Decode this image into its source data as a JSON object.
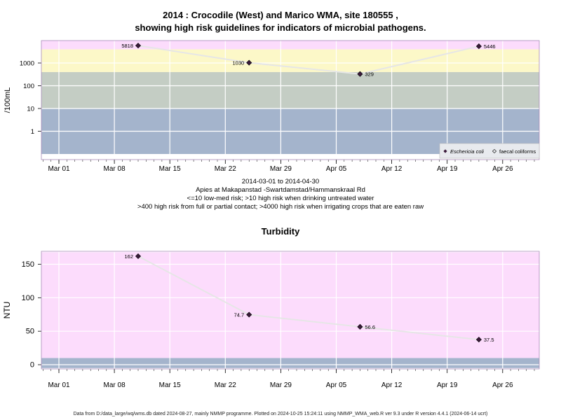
{
  "header": {
    "title_line1": "2014 : Crocodile (West) and Marico WMA, site 180555 ,",
    "title_line2": "showing high risk guidelines for indicators of microbial pathogens."
  },
  "middle": {
    "date_range": "2014-03-01 to 2014-04-30",
    "site_name": "Apies at Makapanstad -Swartdamstad/Hammanskraal Rd",
    "note1": "<=10 low-med risk; >10 high risk when drinking untreated water",
    "note2": ">400 high risk from full or partial contact; >4000 high risk when irrigating crops that are eaten raw"
  },
  "footer": {
    "text": "Data from D:/data_large/wq/wms.db dated 2024-08-27, mainly NMMP programme. Plotted on 2024-10-25 15:24:11 using NMMP_WMA_web.R ver 9.3 under R version 4.4.1 (2024-06-14 ucrt)"
  },
  "chart_data": [
    {
      "type": "scatter",
      "title": "",
      "ylabel": "/100mL",
      "scale": "log",
      "y_ticks": [
        "1",
        "10",
        "100",
        "1000"
      ],
      "x_ticks": [
        "Mar 01",
        "Mar 08",
        "Mar 15",
        "Mar 22",
        "Mar 29",
        "Apr 05",
        "Apr 12",
        "Apr 19",
        "Apr 26"
      ],
      "xlim": [
        "2014-02-27",
        "2014-05-03"
      ],
      "bands": [
        {
          "from": 0.1,
          "to": 10,
          "color": "#a4b4cc"
        },
        {
          "from": 10,
          "to": 400,
          "color": "#c4cdc4"
        },
        {
          "from": 400,
          "to": 4000,
          "color": "#fcf8c8"
        },
        {
          "from": 4000,
          "to": 10000,
          "color": "#fcdcfc"
        }
      ],
      "series": [
        {
          "name": "Eschericia coli",
          "marker": "filled-diamond",
          "points": [
            {
              "x": "2014-03-11",
              "y": 5818,
              "label": "5818"
            },
            {
              "x": "2014-03-25",
              "y": 1030,
              "label": "1030"
            },
            {
              "x": "2014-04-08",
              "y": 329,
              "label": "329"
            },
            {
              "x": "2014-04-23",
              "y": 5446,
              "label": "5446"
            }
          ]
        },
        {
          "name": "faecal coliforms",
          "marker": "open-diamond",
          "points": []
        }
      ],
      "legend": "bottom-right",
      "grid": true
    },
    {
      "type": "scatter",
      "title": "Turbidity",
      "ylabel": "NTU",
      "scale": "linear",
      "ylim": [
        -5,
        168
      ],
      "y_ticks": [
        "0",
        "50",
        "100",
        "150"
      ],
      "x_ticks": [
        "Mar 01",
        "Mar 08",
        "Mar 15",
        "Mar 22",
        "Mar 29",
        "Apr 05",
        "Apr 12",
        "Apr 19",
        "Apr 26"
      ],
      "xlim": [
        "2014-02-27",
        "2014-05-03"
      ],
      "bands": [
        {
          "from": -5,
          "to": 10,
          "color": "#a4b4cc"
        },
        {
          "from": 10,
          "to": 168,
          "color": "#fcdcfc"
        }
      ],
      "series": [
        {
          "name": "",
          "marker": "filled-diamond",
          "points": [
            {
              "x": "2014-03-11",
              "y": 162,
              "label": "162"
            },
            {
              "x": "2014-03-25",
              "y": 74.7,
              "label": "74.7"
            },
            {
              "x": "2014-04-08",
              "y": 56.6,
              "label": "56.6"
            },
            {
              "x": "2014-04-23",
              "y": 37.5,
              "label": "37.5"
            }
          ]
        }
      ],
      "grid": true
    }
  ]
}
